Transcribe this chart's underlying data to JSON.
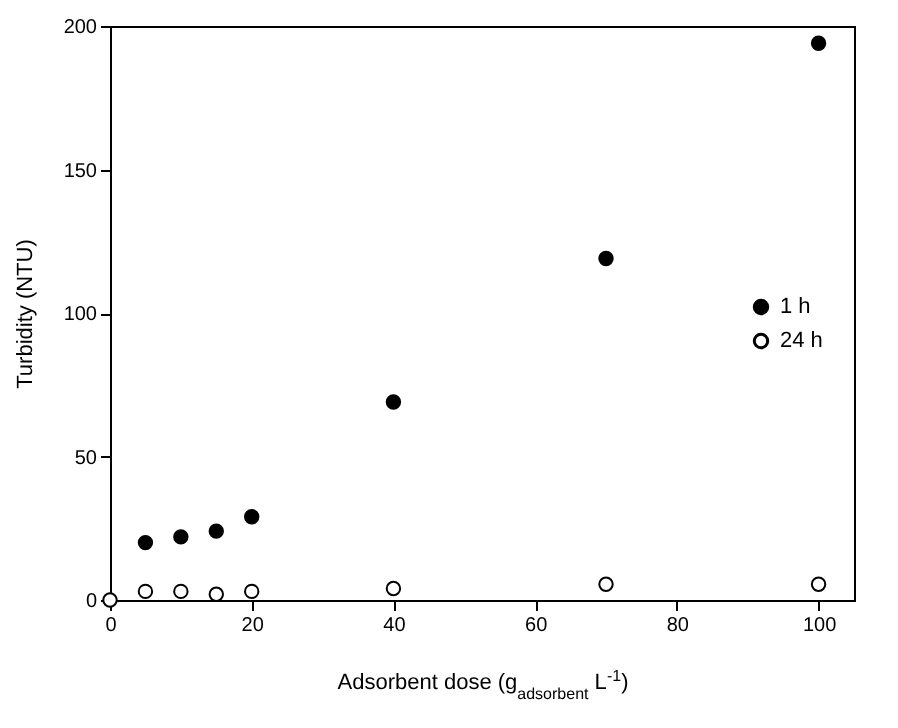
{
  "chart_data": {
    "type": "scatter",
    "xlabel": "Adsorbent dose (g$_{adsorbent}$ L$^{-1}$)",
    "ylabel": "Turbidity (NTU)",
    "x": [
      0,
      5,
      10,
      15,
      20,
      40,
      70,
      100
    ],
    "series": [
      {
        "name": "1 h",
        "color": "#000000",
        "values": [
          null,
          20,
          22,
          24,
          29,
          69,
          119,
          194
        ]
      },
      {
        "name": "24 h",
        "color": "#ffffff",
        "values": [
          0,
          3,
          3,
          2,
          3,
          4,
          5.5,
          5.5
        ]
      }
    ],
    "xlim": [
      0,
      105
    ],
    "ylim": [
      0,
      200
    ],
    "xticks": [
      0,
      20,
      40,
      60,
      80,
      100
    ],
    "yticks": [
      0,
      50,
      100,
      150,
      200
    ],
    "grid": false,
    "legend": "right",
    "marker": "circle"
  }
}
